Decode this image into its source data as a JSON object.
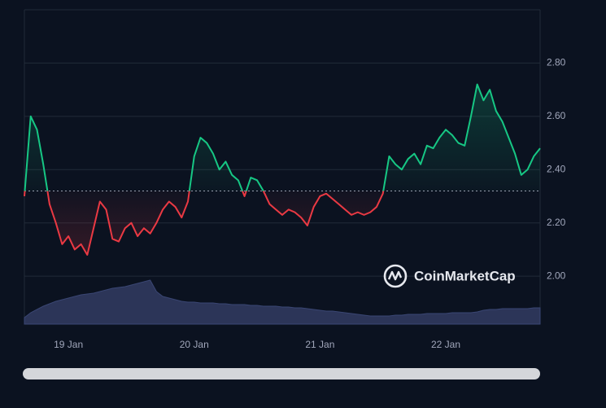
{
  "chart_data": {
    "type": "line",
    "categories": [
      null,
      null,
      null,
      null,
      null,
      null,
      null,
      "19 Jan",
      null,
      null,
      null,
      null,
      null,
      null,
      null,
      null,
      null,
      null,
      null,
      null,
      null,
      null,
      null,
      null,
      null,
      null,
      null,
      "20 Jan",
      null,
      null,
      null,
      null,
      null,
      null,
      null,
      null,
      null,
      null,
      null,
      null,
      null,
      null,
      null,
      null,
      null,
      null,
      null,
      "21 Jan",
      null,
      null,
      null,
      null,
      null,
      null,
      null,
      null,
      null,
      null,
      null,
      null,
      null,
      null,
      null,
      null,
      null,
      null,
      null,
      "22 Jan",
      null,
      null,
      null,
      null,
      null,
      null,
      null,
      null,
      null,
      null,
      null,
      null,
      null,
      null,
      null
    ],
    "values": [
      2.3,
      2.6,
      2.55,
      2.42,
      2.27,
      2.2,
      2.12,
      2.15,
      2.1,
      2.12,
      2.08,
      2.18,
      2.28,
      2.25,
      2.14,
      2.13,
      2.18,
      2.2,
      2.15,
      2.18,
      2.16,
      2.2,
      2.25,
      2.28,
      2.26,
      2.22,
      2.28,
      2.45,
      2.52,
      2.5,
      2.46,
      2.4,
      2.43,
      2.38,
      2.36,
      2.3,
      2.37,
      2.36,
      2.32,
      2.27,
      2.25,
      2.23,
      2.25,
      2.24,
      2.22,
      2.19,
      2.26,
      2.3,
      2.31,
      2.29,
      2.27,
      2.25,
      2.23,
      2.24,
      2.23,
      2.24,
      2.26,
      2.31,
      2.45,
      2.42,
      2.4,
      2.44,
      2.46,
      2.42,
      2.49,
      2.48,
      2.52,
      2.55,
      2.53,
      2.5,
      2.49,
      2.6,
      2.72,
      2.66,
      2.7,
      2.62,
      2.58,
      2.52,
      2.46,
      2.38,
      2.4,
      2.45,
      2.48
    ],
    "baseline": 2.32,
    "up_color": "#16c784",
    "down_color": "#ea3943",
    "volume": [
      8,
      14,
      18,
      22,
      25,
      28,
      30,
      32,
      34,
      36,
      37,
      38,
      40,
      42,
      44,
      45,
      46,
      48,
      50,
      52,
      54,
      40,
      34,
      32,
      30,
      28,
      27,
      27,
      26,
      26,
      26,
      25,
      25,
      24,
      24,
      24,
      23,
      23,
      22,
      22,
      22,
      21,
      21,
      20,
      20,
      19,
      18,
      17,
      16,
      16,
      15,
      14,
      13,
      12,
      11,
      10,
      10,
      10,
      10,
      11,
      11,
      12,
      12,
      12,
      13,
      13,
      13,
      13,
      14,
      14,
      14,
      14,
      15,
      17,
      18,
      18,
      19,
      19,
      19,
      19,
      19,
      20,
      20
    ],
    "volume_lim": [
      0,
      100
    ],
    "volume_color": "#2c3558",
    "ylim": [
      1.82,
      3.0
    ],
    "yticks": [
      {
        "value": 2,
        "label": "2.00"
      },
      {
        "value": 2.2,
        "label": "2.20"
      },
      {
        "value": 2.4,
        "label": "2.40"
      },
      {
        "value": 2.6,
        "label": "2.60"
      },
      {
        "value": 2.8,
        "label": "2.80"
      }
    ],
    "grid": true,
    "watermark": "CoinMarketCap"
  }
}
